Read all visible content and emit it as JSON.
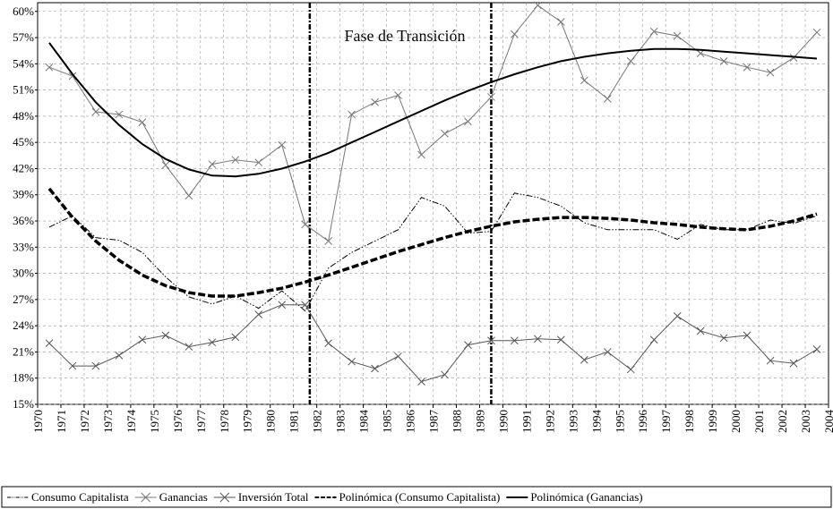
{
  "chart_data": {
    "type": "line",
    "annotation": "Fase de Transición",
    "phase_lines": [
      1981.7,
      1989.5
    ],
    "xlim": [
      1970,
      2004
    ],
    "xticks": [
      1970,
      1971,
      1972,
      1973,
      1974,
      1975,
      1976,
      1977,
      1978,
      1979,
      1980,
      1981,
      1982,
      1983,
      1984,
      1985,
      1986,
      1987,
      1988,
      1989,
      1990,
      1991,
      1992,
      1993,
      1994,
      1995,
      1996,
      1997,
      1998,
      1999,
      2000,
      2001,
      2002,
      2003,
      2004
    ],
    "ylim": [
      15,
      61
    ],
    "yticks": [
      {
        "value": 15,
        "label": "15%"
      },
      {
        "value": 18,
        "label": "18%"
      },
      {
        "value": 21,
        "label": "21%"
      },
      {
        "value": 24,
        "label": "24%"
      },
      {
        "value": 27,
        "label": "27%"
      },
      {
        "value": 30,
        "label": "30%"
      },
      {
        "value": 33,
        "label": "33%"
      },
      {
        "value": 36,
        "label": "36%"
      },
      {
        "value": 39,
        "label": "39%"
      },
      {
        "value": 42,
        "label": "42%"
      },
      {
        "value": 45,
        "label": "45%"
      },
      {
        "value": 48,
        "label": "48%"
      },
      {
        "value": 51,
        "label": "51%"
      },
      {
        "value": 54,
        "label": "54%"
      },
      {
        "value": 57,
        "label": "57%"
      },
      {
        "value": 60,
        "label": "60%"
      }
    ],
    "grid": true,
    "legend": "bottom",
    "x": [
      1970.5,
      1971.5,
      1972.5,
      1973.5,
      1974.5,
      1975.5,
      1976.5,
      1977.5,
      1978.5,
      1979.5,
      1980.5,
      1981.5,
      1982.5,
      1983.5,
      1984.5,
      1985.5,
      1986.5,
      1987.5,
      1988.5,
      1989.5,
      1990.5,
      1991.5,
      1992.5,
      1993.5,
      1994.5,
      1995.5,
      1996.5,
      1997.5,
      1998.5,
      1999.5,
      2000.5,
      2001.5,
      2002.5,
      2003.5
    ],
    "series": [
      {
        "name": "Consumo Capitalista",
        "color": "#000000",
        "dash": "7 2 1.5 2 1.5 2",
        "width": 1,
        "marker": "none",
        "values": [
          35.3,
          36.6,
          34.1,
          33.8,
          32.4,
          29.6,
          27.3,
          26.5,
          27.4,
          26.0,
          28.0,
          25.7,
          30.6,
          32.4,
          33.7,
          35.0,
          38.7,
          37.7,
          34.6,
          34.8,
          39.2,
          38.7,
          37.7,
          35.8,
          35.0,
          35.0,
          35.0,
          33.9,
          35.6,
          35.0,
          35.0,
          36.1,
          35.7,
          36.6
        ]
      },
      {
        "name": "Ganancias",
        "color": "#777777",
        "dash": "none",
        "width": 1,
        "marker": "x",
        "values": [
          53.6,
          52.6,
          48.5,
          48.2,
          47.3,
          42.4,
          38.9,
          42.5,
          43.0,
          42.7,
          44.7,
          35.6,
          33.7,
          48.2,
          49.6,
          50.4,
          43.6,
          46.0,
          47.4,
          50.2,
          57.4,
          60.7,
          58.8,
          52.1,
          50.0,
          54.3,
          57.7,
          57.2,
          55.2,
          54.3,
          53.6,
          53.0,
          54.7,
          57.6
        ]
      },
      {
        "name": "Inversión Total",
        "color": "#555555",
        "dash": "none",
        "width": 1,
        "marker": "x",
        "values": [
          22.0,
          19.4,
          19.4,
          20.6,
          22.4,
          22.9,
          21.6,
          22.1,
          22.7,
          25.3,
          26.4,
          26.4,
          22.0,
          19.9,
          19.1,
          20.5,
          17.6,
          18.4,
          21.8,
          22.3,
          22.3,
          22.5,
          22.4,
          20.1,
          21.0,
          19.0,
          22.4,
          25.1,
          23.4,
          22.6,
          22.9,
          20.0,
          19.7,
          21.3
        ]
      },
      {
        "name": "Polinómica (Consumo Capitalista)",
        "color": "#000000",
        "dash": "8 3",
        "width": 3.5,
        "marker": "none",
        "values": [
          39.7,
          36.4,
          33.7,
          31.5,
          29.8,
          28.6,
          27.8,
          27.4,
          27.4,
          27.8,
          28.3,
          29.0,
          29.8,
          30.7,
          31.6,
          32.5,
          33.3,
          34.1,
          34.8,
          35.4,
          35.9,
          36.2,
          36.4,
          36.4,
          36.3,
          36.1,
          35.8,
          35.6,
          35.3,
          35.1,
          35.0,
          35.4,
          36.0,
          36.8
        ]
      },
      {
        "name": "Polinómica (Ganancias)",
        "color": "#000000",
        "dash": "none",
        "width": 2,
        "marker": "none",
        "values": [
          56.4,
          52.8,
          49.6,
          47.0,
          44.8,
          43.1,
          41.9,
          41.2,
          41.1,
          41.4,
          42.0,
          42.8,
          43.8,
          45.0,
          46.2,
          47.4,
          48.6,
          49.8,
          50.9,
          51.9,
          52.8,
          53.6,
          54.3,
          54.8,
          55.2,
          55.5,
          55.7,
          55.7,
          55.6,
          55.4,
          55.2,
          55.0,
          54.8,
          54.6
        ]
      }
    ]
  }
}
